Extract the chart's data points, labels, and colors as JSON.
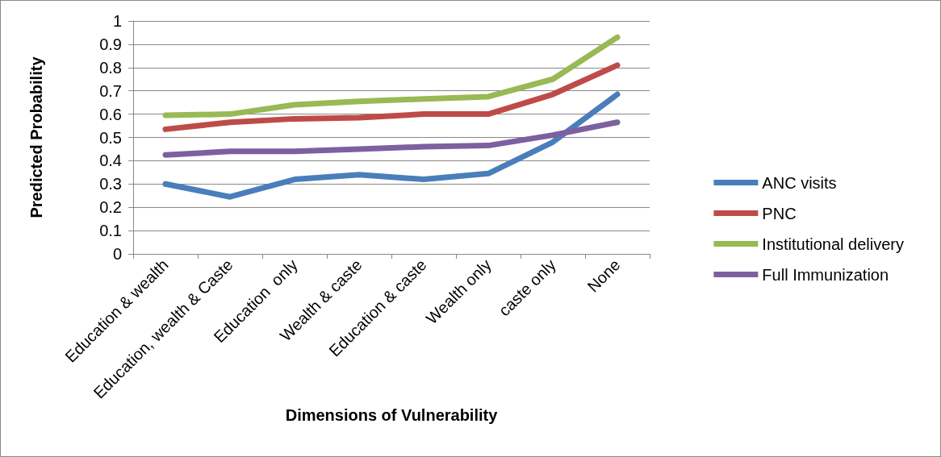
{
  "chart_data": {
    "type": "line",
    "xlabel": "Dimensions of Vulnerability",
    "ylabel": "Predicted Probability",
    "categories": [
      "Education & wealth",
      "Education, wealth & Caste",
      "Education  only",
      "Wealth & caste",
      "Education & caste",
      "Wealth only",
      "caste only",
      "None"
    ],
    "series": [
      {
        "name": "ANC visits",
        "color": "#4a7ebb",
        "values": [
          0.3,
          0.245,
          0.32,
          0.34,
          0.32,
          0.345,
          0.48,
          0.685
        ]
      },
      {
        "name": "PNC",
        "color": "#be4b48",
        "values": [
          0.535,
          0.565,
          0.58,
          0.585,
          0.6,
          0.6,
          0.685,
          0.81
        ]
      },
      {
        "name": "Institutional delivery",
        "color": "#98b954",
        "values": [
          0.595,
          0.6,
          0.64,
          0.655,
          0.665,
          0.675,
          0.75,
          0.93
        ]
      },
      {
        "name": "Full Immunization",
        "color": "#7d60a0",
        "values": [
          0.425,
          0.44,
          0.44,
          0.45,
          0.46,
          0.465,
          0.51,
          0.565
        ]
      }
    ],
    "ylim": [
      0,
      1
    ],
    "yticks": [
      0,
      0.1,
      0.2,
      0.3,
      0.4,
      0.5,
      0.6,
      0.7,
      0.8,
      0.9,
      1
    ],
    "grid": "y",
    "legend": "right",
    "marker": "none",
    "line_style": "solid"
  }
}
